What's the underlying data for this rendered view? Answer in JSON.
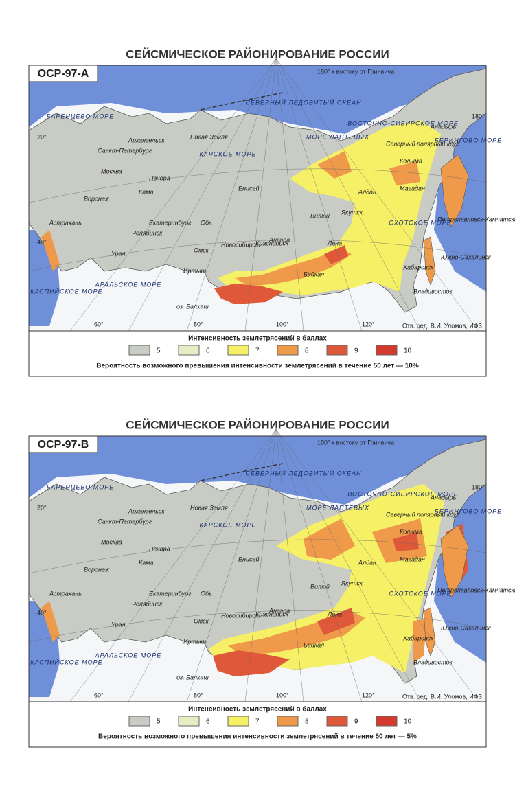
{
  "panels": [
    {
      "title": "СЕЙСМИЧЕСКОЕ РАЙОНИРОВАНИЕ РОССИИ",
      "map_id": "ОСР-97-А",
      "meridian_note": "180° к востоку от Гринвича",
      "credit": "Отв. ред. В.И. Уломов, ИФЗ",
      "legend": {
        "title": "Интенсивность землетрясений в баллах",
        "items": [
          {
            "label": "5",
            "color": "#c8ccc4"
          },
          {
            "label": "6",
            "color": "#e6ecc4"
          },
          {
            "label": "7",
            "color": "#f6f066"
          },
          {
            "label": "8",
            "color": "#ef9a4a"
          },
          {
            "label": "9",
            "color": "#e0583a"
          },
          {
            "label": "10",
            "color": "#d23a2e"
          }
        ]
      },
      "caption": "Вероятность возможного превышения интенсивности землетрясений в течение 50 лет — 10%"
    },
    {
      "title": "СЕЙСМИЧЕСКОЕ РАЙОНИРОВАНИЕ РОССИИ",
      "map_id": "ОСР-97-В",
      "meridian_note": "180° к востоку от Гринвича",
      "credit": "Отв. ред. В.И. Уломов, ИФЗ",
      "legend": {
        "title": "Интенсивность землетрясений в баллах",
        "items": [
          {
            "label": "5",
            "color": "#c8ccc4"
          },
          {
            "label": "6",
            "color": "#e6ecc4"
          },
          {
            "label": "7",
            "color": "#f6f066"
          },
          {
            "label": "8",
            "color": "#ef9a4a"
          },
          {
            "label": "9",
            "color": "#e0583a"
          },
          {
            "label": "10",
            "color": "#d23a2e"
          }
        ]
      },
      "caption": "Вероятность возможного превышения интенсивности землетрясений в течение 50 лет — 5%"
    }
  ],
  "map_labels": [
    "Москва",
    "Санкт-Петербург",
    "Воронеж",
    "Астрахань",
    "Архангельск",
    "Печора",
    "Кама",
    "Челябинск",
    "Екатеринбург",
    "Урал",
    "Обь",
    "Омск",
    "Новосибирск",
    "Красноярск",
    "Енисей",
    "Ангара",
    "Байкал",
    "Лена",
    "Якутск",
    "Вилюй",
    "Алдан",
    "Магадан",
    "Колыма",
    "Анадырь",
    "Петропавловск-Камчатский",
    "Хабаровск",
    "Владивосток",
    "Южно-Сахалинск",
    "Новая Земля",
    "Иртыш",
    "оз. Балхаш",
    "Северный полярный круг"
  ],
  "sea_labels": [
    "СЕВЕРНЫЙ ЛЕДОВИТЫЙ ОКЕАН",
    "КАРСКОЕ МОРЕ",
    "МОРЕ ЛАПТЕВЫХ",
    "ВОСТОЧНО-СИБИРСКОЕ МОРЕ",
    "БАРЕНЦЕВО МОРЕ",
    "БЕРИНГОВО МОРЕ",
    "ОХОТСКОЕ МОРЕ",
    "КАСПИЙСКОЕ МОРЕ",
    "АРАЛЬСКОЕ МОРЕ"
  ],
  "grid_labels": [
    "20°",
    "40°",
    "60°",
    "80°",
    "100°",
    "120°",
    "180°"
  ]
}
